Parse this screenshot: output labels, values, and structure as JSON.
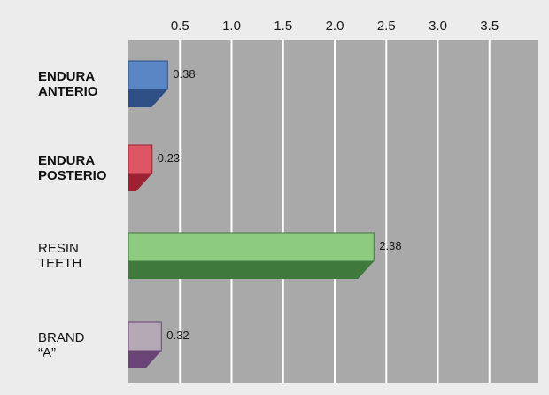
{
  "chart_data": {
    "type": "bar",
    "orientation": "horizontal",
    "title": "",
    "xlabel": "",
    "ylabel": "",
    "xlim": [
      0,
      4.0
    ],
    "x_ticks": [
      0.5,
      1.0,
      1.5,
      2.0,
      2.5,
      3.0,
      3.5
    ],
    "x_tick_labels": [
      "0.5",
      "1.0",
      "1.5",
      "2.0",
      "2.5",
      "3.0",
      "3.5"
    ],
    "grid": true,
    "categories": [
      {
        "lines": [
          "ENDURA",
          "ANTERIO"
        ],
        "bold": true
      },
      {
        "lines": [
          "ENDURA",
          "POSTERIO"
        ],
        "bold": true
      },
      {
        "lines": [
          "RESIN",
          "TEETH"
        ],
        "bold": false
      },
      {
        "lines": [
          "BRAND",
          "“A”"
        ],
        "bold": false
      }
    ],
    "values": [
      0.38,
      0.23,
      2.38,
      0.32
    ],
    "value_labels": [
      "0.38",
      "0.23",
      "2.38",
      "0.32"
    ],
    "colors": [
      {
        "front": "#5b86c5",
        "bottom": "#2e4f86"
      },
      {
        "front": "#de5563",
        "bottom": "#9c2233"
      },
      {
        "front": "#8ccb80",
        "bottom": "#3f7a3c"
      },
      {
        "front": "#b6a9b6",
        "bottom": "#6a4476"
      }
    ],
    "plot_background": "#a9a9a9",
    "gridline_color": "#ffffff"
  }
}
